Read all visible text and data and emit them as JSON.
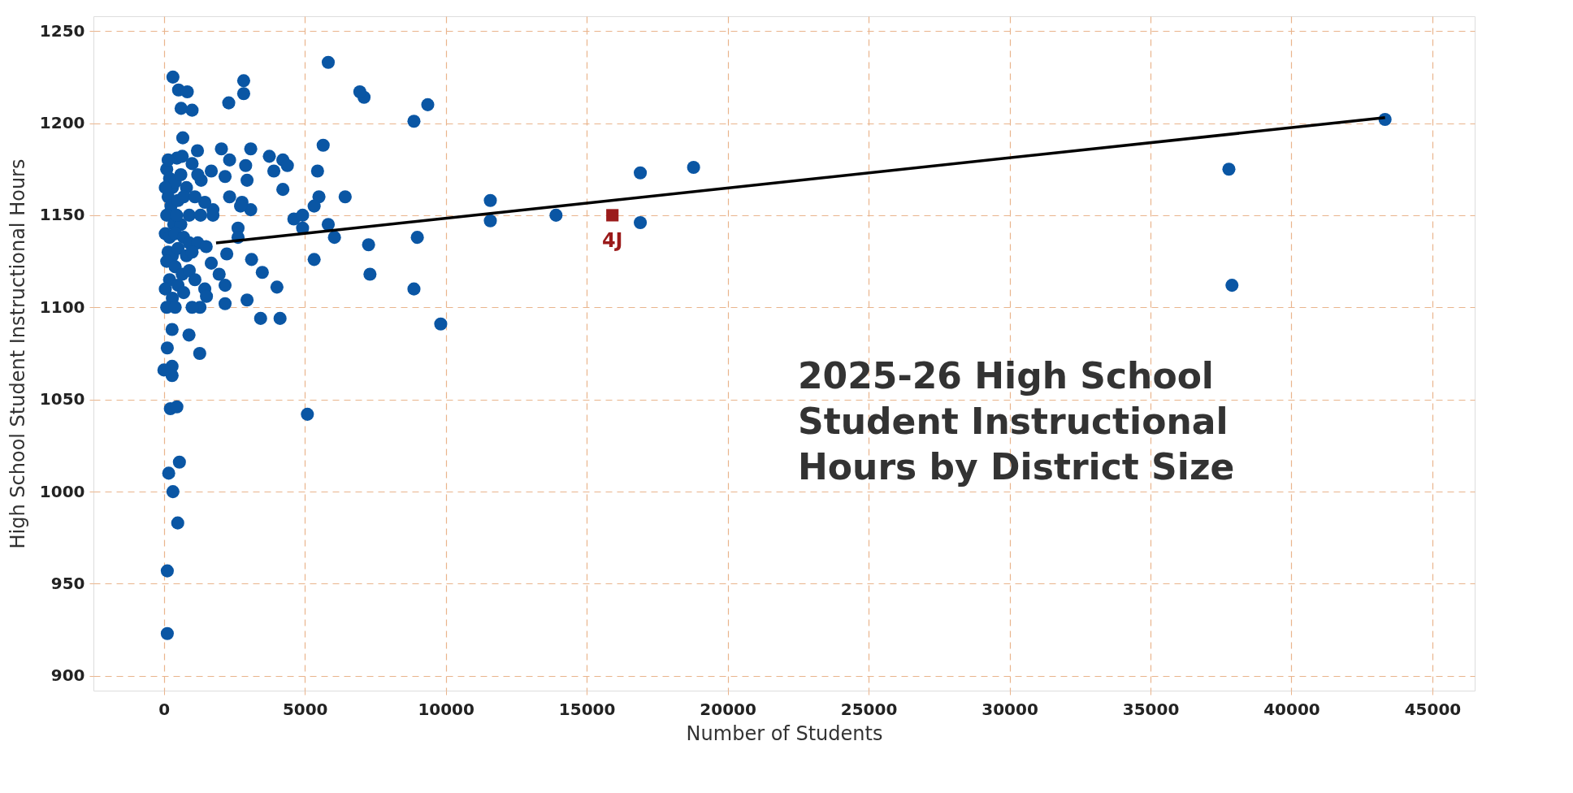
{
  "chart_data": {
    "type": "scatter",
    "title": "2025-26 High School Student Instructional Hours by District Size",
    "xlabel": "Number of Students",
    "ylabel": "High School Student Instructional Hours",
    "xlim": [
      -2500,
      46500
    ],
    "ylim": [
      892,
      1258
    ],
    "xticks": [
      0,
      5000,
      10000,
      15000,
      20000,
      25000,
      30000,
      35000,
      40000,
      45000
    ],
    "yticks": [
      900,
      950,
      1000,
      1050,
      1100,
      1150,
      1200,
      1250
    ],
    "grid": true,
    "series": [
      {
        "marker": "circle",
        "color": "#0a56a4",
        "x": [
          43320,
          37780,
          37890,
          18790,
          16900,
          16900,
          13910,
          11580,
          11580,
          9820,
          9360,
          8870,
          8990,
          8870,
          7100,
          6950,
          5830,
          5650,
          5450,
          6430,
          5500,
          5330,
          5830,
          6050,
          7260,
          5330,
          7310,
          5090,
          2830,
          2830,
          2300,
          3080,
          3740,
          4220,
          4380,
          3900,
          4220,
          2900,
          2950,
          2170,
          2330,
          2770,
          3080,
          2720,
          2040,
          1190,
          2330,
          1680,
          1320,
          4610,
          4920,
          4920,
          2630,
          2630,
          2230,
          3110,
          3490,
          4010,
          2950,
          2170,
          3430,
          4120,
          1740,
          1740,
          1450,
          1680,
          1960,
          2170,
          1450,
          1510,
          1280,
          890,
          670,
          320,
          520,
          830,
          610,
          1000,
          460,
          290,
          120,
          1270,
          290,
          290,
          0,
          230,
          460,
          550,
          170,
          320,
          490,
          120,
          120,
          100,
          200,
          300,
          150,
          400,
          600,
          800,
          250,
          500,
          700,
          900,
          100,
          350,
          600,
          1100,
          1300,
          50,
          200,
          400,
          700,
          900,
          1200,
          1500,
          150,
          300,
          500,
          800,
          1000,
          100,
          400,
          650,
          900,
          200,
          500,
          1100,
          50,
          300,
          700,
          100,
          400,
          1000,
          150,
          650,
          1000,
          1200,
          50,
          450
        ],
        "values": [
          1202,
          1175,
          1112,
          1176,
          1173,
          1146,
          1150,
          1158,
          1147,
          1091,
          1210,
          1201,
          1138,
          1110,
          1214,
          1217,
          1233,
          1188,
          1174,
          1160,
          1160,
          1155,
          1145,
          1138,
          1134,
          1126,
          1118,
          1042,
          1223,
          1216,
          1211,
          1186,
          1182,
          1180,
          1177,
          1174,
          1164,
          1177,
          1169,
          1171,
          1160,
          1157,
          1153,
          1155,
          1186,
          1185,
          1180,
          1174,
          1169,
          1148,
          1150,
          1143,
          1143,
          1138,
          1129,
          1126,
          1119,
          1111,
          1104,
          1102,
          1094,
          1094,
          1153,
          1150,
          1157,
          1124,
          1118,
          1112,
          1110,
          1106,
          1100,
          1085,
          1192,
          1225,
          1218,
          1217,
          1208,
          1207,
          1181,
          1088,
          1078,
          1075,
          1068,
          1063,
          1066,
          1045,
          1046,
          1016,
          1010,
          1000,
          983,
          957,
          923,
          1175,
          1170,
          1165,
          1160,
          1168,
          1172,
          1165,
          1155,
          1158,
          1160,
          1150,
          1150,
          1145,
          1145,
          1160,
          1150,
          1140,
          1138,
          1140,
          1138,
          1135,
          1135,
          1133,
          1130,
          1128,
          1132,
          1128,
          1130,
          1125,
          1122,
          1118,
          1120,
          1115,
          1112,
          1115,
          1110,
          1105,
          1108,
          1100,
          1100,
          1100,
          1180,
          1182,
          1178,
          1172,
          1165,
          1150
        ]
      },
      {
        "marker": "square",
        "color": "#9b1b1b",
        "x": [
          15910
        ],
        "values": [
          1150
        ]
      },
      {
        "type": "line",
        "marker": "none",
        "color": "#000000",
        "x": [
          1850,
          43320
        ],
        "values": [
          1135,
          1203
        ]
      }
    ],
    "annotations": [
      {
        "text": "4J",
        "x": 15910,
        "y": 1150
      }
    ]
  }
}
